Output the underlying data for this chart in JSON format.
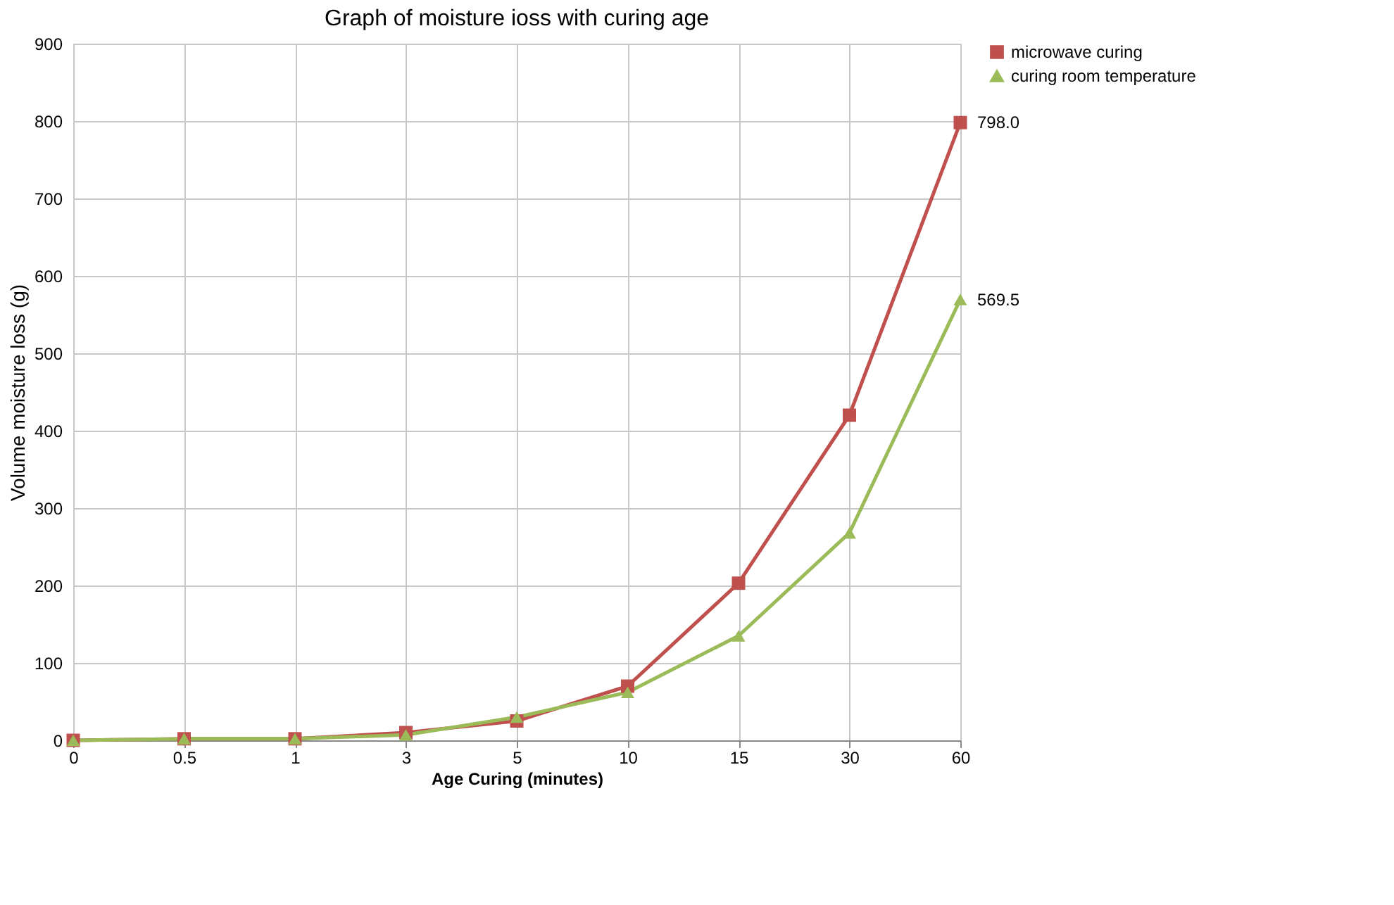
{
  "chart_data": {
    "type": "line",
    "title": "Graph of moisture ioss with curing age",
    "xlabel": "Age Curing (minutes)",
    "ylabel": "Volume  moisture loss (g)",
    "categories": [
      "0",
      "0.5",
      "1",
      "3",
      "5",
      "10",
      "15",
      "30",
      "60"
    ],
    "series": [
      {
        "name": "microwave curing",
        "color": "#c0504d",
        "marker": "square",
        "values": [
          0,
          2,
          2,
          10,
          25,
          70,
          203,
          420,
          798.0
        ],
        "value_labels": [
          null,
          null,
          null,
          null,
          null,
          null,
          null,
          null,
          "798.0"
        ]
      },
      {
        "name": "curing room temperature",
        "color": "#9bbb59",
        "marker": "triangle",
        "values": [
          0,
          2,
          2,
          7,
          30,
          62,
          135,
          268,
          569.5
        ],
        "value_labels": [
          null,
          null,
          null,
          null,
          null,
          null,
          null,
          null,
          "569.5"
        ]
      }
    ],
    "ylim": [
      0,
      900
    ],
    "yticks": [
      0,
      100,
      200,
      300,
      400,
      500,
      600,
      700,
      800,
      900
    ],
    "grid": true,
    "legend": "right"
  }
}
